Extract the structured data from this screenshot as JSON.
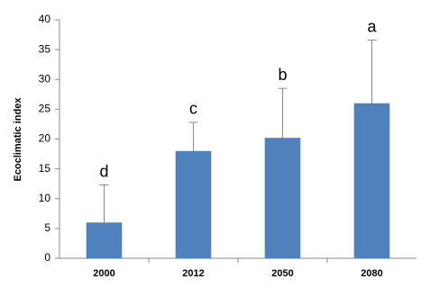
{
  "chart_data": {
    "type": "bar",
    "y_label": "Ecoclimatic index",
    "categories": [
      "2000",
      "2012",
      "2050",
      "2080"
    ],
    "values": [
      6,
      18,
      20.2,
      26
    ],
    "errors": [
      6.3,
      4.8,
      8.3,
      10.6
    ],
    "annotations": [
      "d",
      "c",
      "b",
      "a"
    ],
    "color": "#4f81bd",
    "ylim": [
      0,
      40
    ],
    "yticks": [
      0,
      5,
      10,
      15,
      20,
      25,
      30,
      35,
      40
    ],
    "grid": false
  }
}
